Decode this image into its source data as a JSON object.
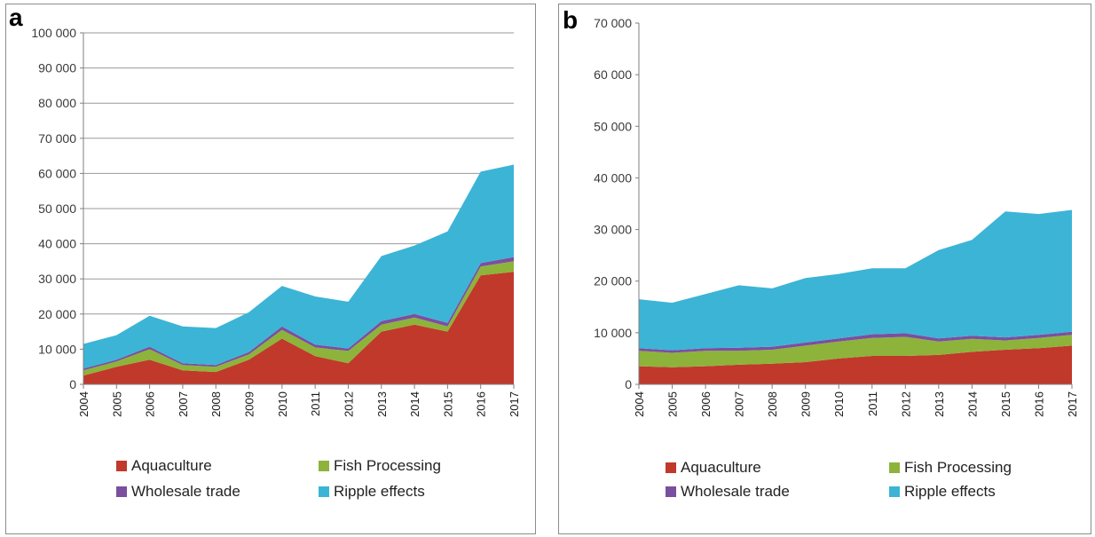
{
  "chart_data": [
    {
      "type": "area",
      "stacked": true,
      "panel_label": "a",
      "x": [
        "2004",
        "2005",
        "2006",
        "2007",
        "2008",
        "2009",
        "2010",
        "2011",
        "2012",
        "2013",
        "2014",
        "2015",
        "2016",
        "2017"
      ],
      "ylim": [
        0,
        100000
      ],
      "yticks": [
        0,
        10000,
        20000,
        30000,
        40000,
        50000,
        60000,
        70000,
        80000,
        90000,
        100000
      ],
      "ytick_labels": [
        "0",
        "10 000",
        "20 000",
        "30 000",
        "40 000",
        "50 000",
        "60 000",
        "70 000",
        "80 000",
        "90 000",
        "100 000"
      ],
      "grid": true,
      "legend_position": "bottom",
      "series": [
        {
          "name": "Aquaculture",
          "color": "#c0392b",
          "values": [
            2500,
            5000,
            7000,
            4000,
            3500,
            7000,
            13000,
            8000,
            6000,
            15000,
            17000,
            15000,
            31000,
            32000
          ]
        },
        {
          "name": "Fish Processing",
          "color": "#8db33b",
          "values": [
            1500,
            1500,
            3000,
            1500,
            1500,
            1500,
            2500,
            2500,
            3500,
            2000,
            2000,
            1500,
            2500,
            3000
          ]
        },
        {
          "name": "Wholesale trade",
          "color": "#7b4fa0",
          "values": [
            500,
            500,
            700,
            500,
            500,
            700,
            1000,
            800,
            700,
            1000,
            1000,
            1000,
            1000,
            1200
          ]
        },
        {
          "name": "Ripple effects",
          "color": "#3cb4d6",
          "values": [
            7000,
            7000,
            8800,
            10500,
            10500,
            11300,
            11500,
            13700,
            13300,
            18500,
            19500,
            26000,
            26000,
            26300
          ]
        }
      ]
    },
    {
      "type": "area",
      "stacked": true,
      "panel_label": "b",
      "x": [
        "2004",
        "2005",
        "2006",
        "2007",
        "2008",
        "2009",
        "2010",
        "2011",
        "2012",
        "2013",
        "2014",
        "2015",
        "2016",
        "2017"
      ],
      "ylim": [
        0,
        70000
      ],
      "yticks": [
        0,
        10000,
        20000,
        30000,
        40000,
        50000,
        60000,
        70000
      ],
      "ytick_labels": [
        "0",
        "10 000",
        "20 000",
        "30 000",
        "40 000",
        "50 000",
        "60 000",
        "70 000"
      ],
      "grid": false,
      "legend_position": "bottom",
      "series": [
        {
          "name": "Aquaculture",
          "color": "#c0392b",
          "values": [
            3500,
            3300,
            3500,
            3800,
            4000,
            4300,
            5000,
            5500,
            5500,
            5700,
            6300,
            6700,
            7000,
            7500
          ]
        },
        {
          "name": "Fish Processing",
          "color": "#8db33b",
          "values": [
            3000,
            2800,
            3000,
            2700,
            2700,
            3200,
            3300,
            3500,
            3700,
            2600,
            2500,
            1800,
            2000,
            2100
          ]
        },
        {
          "name": "Wholesale trade",
          "color": "#7b4fa0",
          "values": [
            500,
            500,
            500,
            600,
            600,
            600,
            600,
            700,
            700,
            600,
            600,
            600,
            600,
            600
          ]
        },
        {
          "name": "Ripple effects",
          "color": "#3cb4d6",
          "values": [
            9500,
            9200,
            10500,
            12100,
            11300,
            12500,
            12500,
            12800,
            12600,
            17100,
            18600,
            24400,
            23400,
            23600
          ]
        }
      ]
    }
  ]
}
